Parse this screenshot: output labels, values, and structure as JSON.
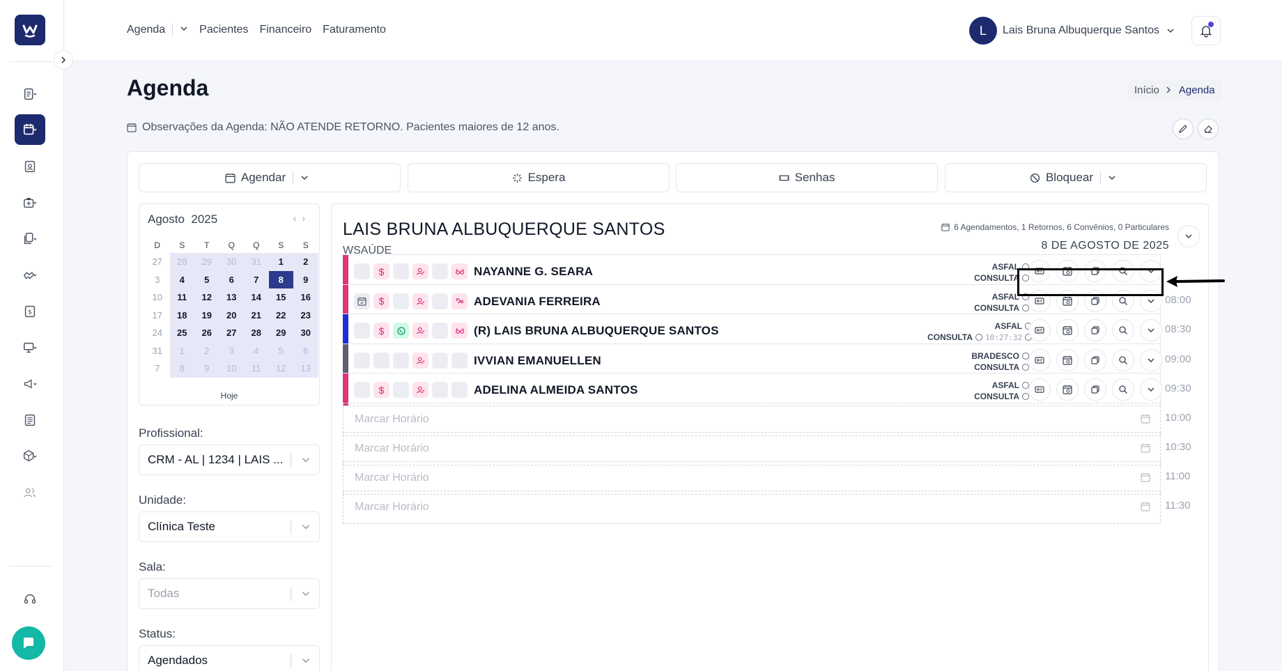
{
  "topnav": {
    "agenda": "Agenda",
    "pacientes": "Pacientes",
    "financeiro": "Financeiro",
    "faturamento": "Faturamento"
  },
  "user": {
    "initial": "L",
    "name": "Lais Bruna Albuquerque Santos"
  },
  "page": {
    "title": "Agenda",
    "breadcrumb_home": "Início",
    "breadcrumb_current": "Agenda",
    "observations": "Observações da Agenda: NÃO ATENDE RETORNO. Pacientes maiores de 12 anos."
  },
  "actions": {
    "agendar": "Agendar",
    "espera": "Espera",
    "senhas": "Senhas",
    "bloquear": "Bloquear"
  },
  "calendar": {
    "month": "Agosto",
    "year": "2025",
    "weekdays": [
      "D",
      "S",
      "T",
      "Q",
      "Q",
      "S",
      "S"
    ],
    "today_label": "Hoje",
    "weeks": [
      [
        "27",
        "28",
        "29",
        "30",
        "31",
        "1",
        "2"
      ],
      [
        "3",
        "4",
        "5",
        "6",
        "7",
        "8",
        "9"
      ],
      [
        "10",
        "11",
        "12",
        "13",
        "14",
        "15",
        "16"
      ],
      [
        "17",
        "18",
        "19",
        "20",
        "21",
        "22",
        "23"
      ],
      [
        "24",
        "25",
        "26",
        "27",
        "28",
        "29",
        "30"
      ],
      [
        "31",
        "1",
        "2",
        "3",
        "4",
        "5",
        "6"
      ],
      [
        "7",
        "8",
        "9",
        "10",
        "11",
        "12",
        "13"
      ]
    ],
    "selected_day": "8"
  },
  "filters": {
    "profissional_label": "Profissional:",
    "profissional_value": "CRM - AL | 1234 | LAIS ...",
    "unidade_label": "Unidade:",
    "unidade_value": "Clínica Teste",
    "sala_label": "Sala:",
    "sala_value": "Todas",
    "status_label": "Status:",
    "status_value": "Agendados"
  },
  "agenda": {
    "professional": "LAIS BRUNA ALBUQUERQUE SANTOS",
    "organization": "WSAÚDE",
    "summary": "6 Agendamentos, 1 Retornos, 6 Convênios, 0 Particulares",
    "date": "8 DE AGOSTO DE 2025",
    "appointments": [
      {
        "name": "NAYANNE G. SEARA",
        "insurance": "ASFAL",
        "type": "CONSULTA",
        "time": "",
        "clock": "",
        "bar_color": "#e0337a"
      },
      {
        "name": "ADEVANIA FERREIRA",
        "insurance": "ASFAL",
        "type": "CONSULTA",
        "time": "08:00",
        "clock": "",
        "bar_color": "#e0337a"
      },
      {
        "name": "(R) LAIS BRUNA ALBUQUERQUE SANTOS",
        "insurance": "ASFAL",
        "type": "CONSULTA",
        "time": "08:30",
        "clock": "10:27:32",
        "bar_color": "#1d2fd6"
      },
      {
        "name": "IVVIAN EMANUELLEN",
        "insurance": "BRADESCO",
        "type": "CONSULTA",
        "time": "09:00",
        "clock": "",
        "bar_color": "#5b5f6e"
      },
      {
        "name": "ADELINA ALMEIDA SANTOS",
        "insurance": "ASFAL",
        "type": "CONSULTA",
        "time": "09:30",
        "clock": "",
        "bar_color": "#e0337a"
      }
    ],
    "empty_slots": [
      {
        "placeholder": "Marcar Horário",
        "time": "10:00"
      },
      {
        "placeholder": "Marcar Horário",
        "time": "10:30"
      },
      {
        "placeholder": "Marcar Horário",
        "time": "11:00"
      },
      {
        "placeholder": "Marcar Horário",
        "time": "11:30"
      }
    ]
  }
}
